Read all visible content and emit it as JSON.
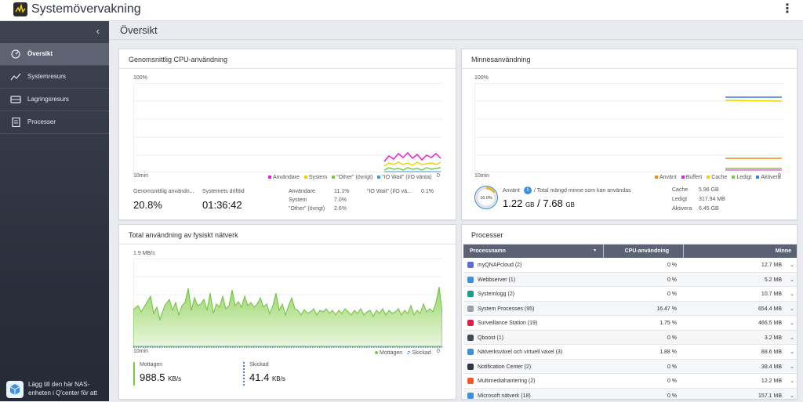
{
  "app": {
    "title": "Systemövervakning"
  },
  "sidebar": {
    "items": [
      {
        "label": "Översikt",
        "icon": "dashboard-icon",
        "active": true
      },
      {
        "label": "Systemresurs",
        "icon": "line-chart-icon"
      },
      {
        "label": "Lagringsresurs",
        "icon": "storage-icon"
      },
      {
        "label": "Processer",
        "icon": "document-list-icon"
      }
    ],
    "promo": "Lägg till den här NAS-enheten i Q'center för att"
  },
  "page": {
    "title": "Översikt"
  },
  "cpu": {
    "title": "Genomsnittlig CPU-användning",
    "ymax_label": "100%",
    "x_left": "10min",
    "x_right": "0",
    "legend": [
      {
        "label": "Användare",
        "color": "#e81fd6"
      },
      {
        "label": "System",
        "color": "#f3d300"
      },
      {
        "label": "\"Other\" (övrigt)",
        "color": "#7ac943"
      },
      {
        "label": "\"IO Wait\" (I/O vänta)",
        "color": "#3d9be9"
      }
    ],
    "avg_label": "Genomsnittlig användn...",
    "avg_value": "20.8%",
    "uptime_label": "Systemets drifttid",
    "uptime_value": "01:36:42",
    "stats": [
      {
        "label": "Användare",
        "value": "11.1%"
      },
      {
        "label": "System",
        "value": "7.0%"
      },
      {
        "label": "\"Other\" (övrigt)",
        "value": "2.6%"
      }
    ],
    "iowait_label": "\"IO Wait\" (I/O vä...",
    "iowait_value": "0.1%"
  },
  "memory": {
    "title": "Minnesanvändning",
    "ymax_label": "100%",
    "x_left": "10min",
    "x_right": "0",
    "legend": [
      {
        "label": "Använt",
        "color": "#f28c1c"
      },
      {
        "label": "Buffert",
        "color": "#e81fd6"
      },
      {
        "label": "Cache",
        "color": "#f3d300"
      },
      {
        "label": "Ledigt",
        "color": "#7ac943"
      },
      {
        "label": "Aktivera",
        "color": "#3d7de0"
      }
    ],
    "gauge_value": "16.0%",
    "gauge_fraction": 0.16,
    "used_label": "Använt",
    "info_icon": "info-icon",
    "total_label": "/ Total mängd minne som kan användas",
    "used_value": "1.22",
    "used_unit": "GB",
    "slash": "/",
    "total_value": "7.68",
    "total_unit": "GB",
    "stats": [
      {
        "label": "Cache",
        "value": "5.96 GB"
      },
      {
        "label": "Ledigt",
        "value": "317.94 MB"
      },
      {
        "label": "Aktivera",
        "value": "6.45 GB"
      }
    ]
  },
  "network": {
    "title": "Total användning av fysiskt nätverk",
    "ymax_label": "1.9 MB/s",
    "x_left": "10min",
    "x_right": "0",
    "legend": [
      {
        "label": "Mottagen",
        "color": "#7ac943"
      },
      {
        "label": "Skickad",
        "color": "#3d7de0"
      }
    ],
    "received_label": "Mottagen",
    "received_value": "988.5",
    "received_unit": "KB/s",
    "sent_label": "Skickad",
    "sent_value": "41.4",
    "sent_unit": "KB/s"
  },
  "processes": {
    "title": "Processer",
    "columns": [
      "Processnamn",
      "CPU-användning",
      "Minne"
    ],
    "rows": [
      {
        "name": "myQNAPcloud (2)",
        "cpu": "0 %",
        "mem": "12.7 MB",
        "icon": "cloud-icon",
        "color": "#5d6bd8"
      },
      {
        "name": "Webbserver (1)",
        "cpu": "0 %",
        "mem": "5.2 MB",
        "icon": "globe-icon",
        "color": "#3d8fe0"
      },
      {
        "name": "Systemlogg (2)",
        "cpu": "0 %",
        "mem": "10.7 MB",
        "icon": "log-icon",
        "color": "#1f9d8a"
      },
      {
        "name": "System Processes (95)",
        "cpu": "16.47 %",
        "mem": "654.4 MB",
        "icon": "system-icon",
        "color": "#9aa0aa"
      },
      {
        "name": "Surveillance Station (19)",
        "cpu": "1.75 %",
        "mem": "466.5 MB",
        "icon": "camera-icon",
        "color": "#d9234a"
      },
      {
        "name": "Qboost (1)",
        "cpu": "0 %",
        "mem": "3.2 MB",
        "icon": "qboost-icon",
        "color": "#444b57"
      },
      {
        "name": "Nätverksväxel och virtuell växel (3)",
        "cpu": "1.88 %",
        "mem": "88.6 MB",
        "icon": "network-switch-icon",
        "color": "#3d8fe0"
      },
      {
        "name": "Notification Center (2)",
        "cpu": "0 %",
        "mem": "38.4 MB",
        "icon": "notification-icon",
        "color": "#2f3540"
      },
      {
        "name": "Multimediahantering (2)",
        "cpu": "0 %",
        "mem": "12.2 MB",
        "icon": "multimedia-icon",
        "color": "#f0592a"
      },
      {
        "name": "Microsoft nätverk (18)",
        "cpu": "0 %",
        "mem": "157.1 MB",
        "icon": "windows-icon",
        "color": "#3d8fe0"
      }
    ]
  }
}
